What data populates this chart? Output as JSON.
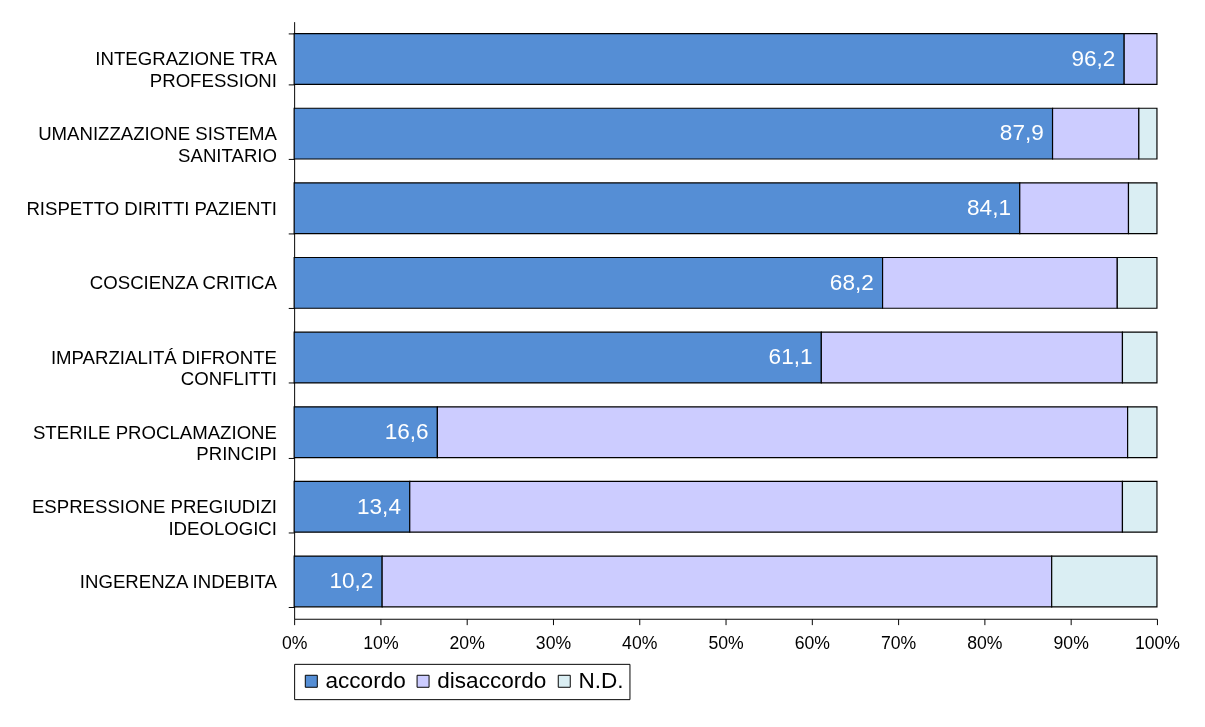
{
  "chart_data": {
    "type": "bar",
    "orientation": "horizontal",
    "stacked": true,
    "categories": [
      "INTEGRAZIONE TRA PROFESSIONI",
      "UMANIZZAZIONE SISTEMA SANITARIO",
      "RISPETTO DIRITTI PAZIENTI",
      "COSCIENZA CRITICA",
      "IMPARZIALITÁ DIFRONTE CONFLITTI",
      "STERILE PROCLAMAZIONE PRINCIPI",
      "ESPRESSIONE PREGIUDIZI IDEOLOGICI",
      "INGERENZA INDEBITA"
    ],
    "series": [
      {
        "name": "accordo",
        "color": "#558ed5",
        "values": [
          96.2,
          87.9,
          84.1,
          68.2,
          61.1,
          16.6,
          13.4,
          10.2
        ],
        "value_labels": [
          "96,2",
          "87,9",
          "84,1",
          "68,2",
          "61,1",
          "16,6",
          "13,4",
          "10,2"
        ]
      },
      {
        "name": "disaccordo",
        "color": "#ccccff",
        "values": [
          3.8,
          10.0,
          12.6,
          27.2,
          34.9,
          80.0,
          82.6,
          77.6
        ]
      },
      {
        "name": "N.D.",
        "color": "#daeef3",
        "values": [
          null,
          2.1,
          3.3,
          4.6,
          4.0,
          3.4,
          4.0,
          12.2
        ]
      }
    ],
    "xlim": [
      0,
      100
    ],
    "xticks": [
      {
        "value": 0,
        "label": "0%"
      },
      {
        "value": 10,
        "label": "10%"
      },
      {
        "value": 20,
        "label": "20%"
      },
      {
        "value": 30,
        "label": "30%"
      },
      {
        "value": 40,
        "label": "40%"
      },
      {
        "value": 50,
        "label": "50%"
      },
      {
        "value": 60,
        "label": "60%"
      },
      {
        "value": 70,
        "label": "70%"
      },
      {
        "value": 80,
        "label": "80%"
      },
      {
        "value": 90,
        "label": "90%"
      },
      {
        "value": 100,
        "label": "100%"
      }
    ],
    "legend": "bottom"
  }
}
